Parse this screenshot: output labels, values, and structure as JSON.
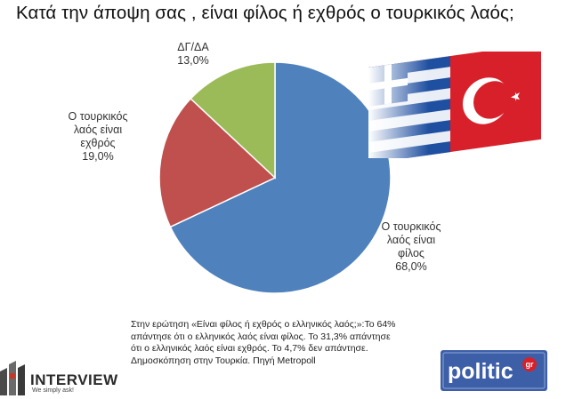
{
  "title": "Κατά την άποψη σας , είναι φίλος ή εχθρός ο τουρκικός λαός;",
  "chart_data": {
    "type": "pie",
    "title": "Κατά την άποψη σας , είναι φίλος ή εχθρός ο τουρκικός λαός;",
    "slices": [
      {
        "label": "Ο τουρκικός λαός είναι φίλος",
        "label_lines": [
          "Ο τουρκικός",
          "λαός είναι",
          "φίλος"
        ],
        "value": 68.0,
        "value_label": "68,0%",
        "color": "#4f81bd"
      },
      {
        "label": "Ο τουρκικός λαός είναι εχθρός",
        "label_lines": [
          "Ο τουρκικός",
          "λαός είναι",
          "εχθρός"
        ],
        "value": 19.0,
        "value_label": "19,0%",
        "color": "#c0504d"
      },
      {
        "label": "ΔΓ/ΔΑ",
        "label_lines": [
          "ΔΓ/ΔΑ"
        ],
        "value": 13.0,
        "value_label": "13,0%",
        "color": "#9bbb59"
      }
    ]
  },
  "note": {
    "lines": [
      "Στην ερώτηση «Είναι φίλος ή εχθρός ο ελληνικός λαός;»:Το 64%",
      "απάντησε ότι ο ελληνικός λαός είναι φίλος. Το 31,3% απάντησε",
      "ότι ο ελληνικός λαός είναι εχθρός. Το 4,7% δεν απάντησε.",
      "Δημοσκόπηση στην Τουρκία. Πηγή Metropoll"
    ]
  },
  "logos": {
    "interview": "INTERVIEW",
    "interview_tagline": "We simply ask!",
    "politic": "politic",
    "politic_suffix": "gr"
  },
  "colors": {
    "friend": "#4f81bd",
    "enemy": "#c0504d",
    "dk": "#9bbb59",
    "politic_bg": "#3d5fa8"
  }
}
